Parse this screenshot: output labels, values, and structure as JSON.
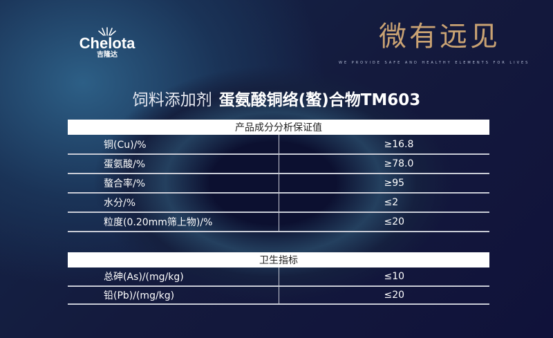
{
  "brand": {
    "name": "Chelota",
    "sub": "吉隆达",
    "trademark": "®"
  },
  "slogan": "微有远见",
  "tagline": "WE PROVIDE SAFE AND HEALTHY ELEMENTS FOR LIVES",
  "title": {
    "category": "饲料添加剂",
    "product": "蛋氨酸铜络(螯)合物TM603"
  },
  "table1": {
    "header": "产品成分分析保证值",
    "rows": [
      {
        "label": "铜(Cu)/%",
        "value": "≥16.8"
      },
      {
        "label": "蛋氨酸/%",
        "value": "≥78.0"
      },
      {
        "label": "螯合率/%",
        "value": "≥95"
      },
      {
        "label": "水分/%",
        "value": "≤2"
      },
      {
        "label": "粒度(0.20mm筛上物)/%",
        "value": "≤20"
      }
    ]
  },
  "table2": {
    "header": "卫生指标",
    "rows": [
      {
        "label": "总砷(As)/(mg/kg)",
        "value": "≤10"
      },
      {
        "label": "铅(Pb)/(mg/kg)",
        "value": "≤20"
      }
    ]
  }
}
